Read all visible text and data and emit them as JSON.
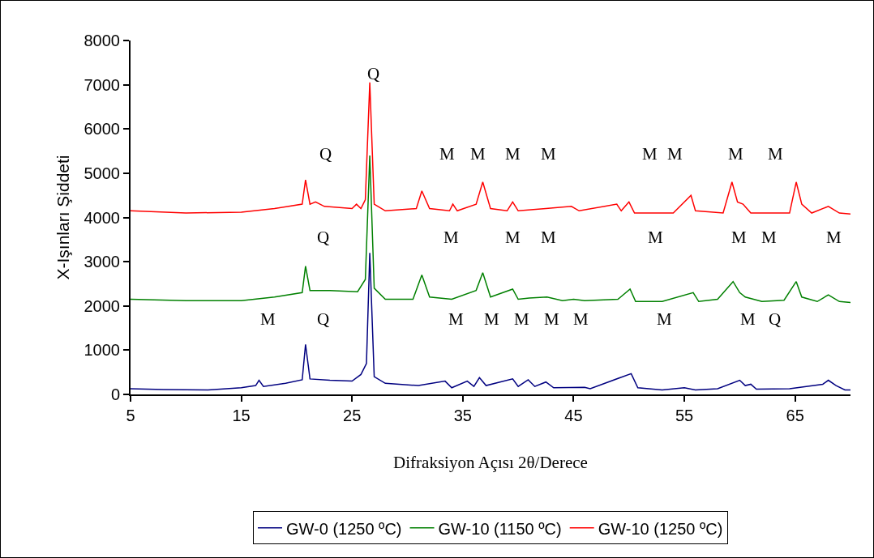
{
  "chart_data": {
    "type": "line",
    "xlabel": "Difraksiyon Açısı 2θ/Derece",
    "ylabel": "X-Işınları Şiddeti",
    "xlim": [
      5,
      70
    ],
    "xticks": [
      5,
      15,
      25,
      35,
      45,
      55,
      65
    ],
    "ylim": [
      0,
      8000
    ],
    "yticks": [
      0,
      1000,
      2000,
      3000,
      4000,
      5000,
      6000,
      7000,
      8000
    ],
    "grid": false,
    "legend": "bottom",
    "marker": "none",
    "line_style": "solid",
    "series": [
      {
        "name": "GW-0 (1250 ºC)",
        "color": "#000080",
        "x": [
          5,
          8,
          12,
          15,
          16.3,
          16.6,
          17,
          19,
          20.5,
          20.8,
          21.2,
          23,
          25,
          25.8,
          26.3,
          26.6,
          27,
          28,
          31,
          33.4,
          34,
          35.4,
          36,
          36.5,
          37.1,
          39.5,
          40,
          40.9,
          41.5,
          42.5,
          43.2,
          46,
          46.5,
          50.2,
          50.8,
          53,
          55,
          56,
          58,
          60,
          60.5,
          61,
          61.5,
          64.5,
          67.5,
          68,
          68.7,
          69.5,
          70
        ],
        "values": [
          130,
          110,
          100,
          150,
          200,
          320,
          180,
          250,
          330,
          1130,
          350,
          320,
          300,
          450,
          700,
          3200,
          400,
          250,
          200,
          300,
          150,
          300,
          180,
          380,
          200,
          350,
          180,
          330,
          180,
          280,
          150,
          160,
          130,
          470,
          150,
          100,
          150,
          100,
          130,
          320,
          200,
          230,
          120,
          130,
          230,
          320,
          200,
          100,
          100
        ]
      },
      {
        "name": "GW-10 (1150 ºC)",
        "color": "#008000",
        "x": [
          5,
          10,
          15,
          18,
          20.5,
          20.8,
          21.2,
          23,
          25.5,
          26.2,
          26.6,
          27,
          28,
          30.5,
          31.3,
          32,
          34,
          36.2,
          36.8,
          37.5,
          39.5,
          40,
          41,
          42.6,
          44,
          45,
          46,
          49,
          50.1,
          50.6,
          53,
          55.8,
          56.3,
          58,
          59.4,
          60,
          60.5,
          62,
          64,
          65.1,
          65.6,
          67,
          68,
          69,
          70
        ],
        "values": [
          2150,
          2120,
          2120,
          2200,
          2300,
          2900,
          2350,
          2350,
          2320,
          2600,
          5400,
          2400,
          2150,
          2150,
          2700,
          2200,
          2150,
          2350,
          2750,
          2200,
          2380,
          2150,
          2180,
          2200,
          2120,
          2150,
          2120,
          2150,
          2380,
          2100,
          2100,
          2300,
          2100,
          2150,
          2550,
          2300,
          2200,
          2100,
          2130,
          2550,
          2200,
          2100,
          2250,
          2100,
          2080
        ]
      },
      {
        "name": "GW-10 (1250 ºC)",
        "color": "#ff0000",
        "x": [
          5,
          10,
          15,
          18,
          20.5,
          20.8,
          21.2,
          21.7,
          22.5,
          25,
          25.4,
          25.8,
          26.2,
          26.6,
          27,
          28,
          30.8,
          31.3,
          32,
          33.8,
          34.1,
          34.5,
          36.2,
          36.8,
          37.5,
          39,
          39.5,
          40,
          42.5,
          44.8,
          45.5,
          48.9,
          49.3,
          50,
          50.5,
          52.7,
          54,
          55.6,
          56,
          58.5,
          59.3,
          59.8,
          60.3,
          61,
          64.5,
          65.1,
          65.6,
          66.5,
          68,
          69,
          70
        ],
        "values": [
          4150,
          4100,
          4120,
          4200,
          4300,
          4850,
          4300,
          4350,
          4250,
          4200,
          4300,
          4200,
          4400,
          7050,
          4300,
          4150,
          4200,
          4600,
          4200,
          4150,
          4300,
          4150,
          4300,
          4800,
          4200,
          4150,
          4350,
          4150,
          4200,
          4250,
          4150,
          4300,
          4150,
          4350,
          4100,
          4100,
          4100,
          4500,
          4150,
          4100,
          4800,
          4350,
          4300,
          4100,
          4100,
          4800,
          4300,
          4100,
          4250,
          4100,
          4080
        ]
      }
    ],
    "annotations": [
      "Q",
      "Q",
      "M",
      "M",
      "M",
      "M",
      "M",
      "M",
      "M",
      "M",
      "Q",
      "M",
      "M",
      "M",
      "M",
      "M",
      "M",
      "M",
      "M",
      "Q",
      "M",
      "M",
      "M",
      "M",
      "M",
      "M",
      "M",
      "Q"
    ]
  }
}
